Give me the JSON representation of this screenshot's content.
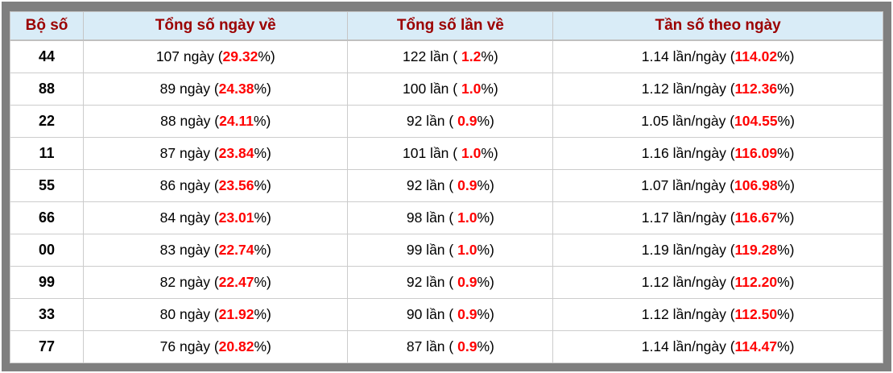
{
  "table": {
    "headers": {
      "pair": "Bộ số",
      "days": "Tổng số ngày về",
      "times": "Tổng số lần về",
      "freq": "Tần số theo ngày"
    },
    "labels": {
      "open": " (",
      "open_spaced": " ( ",
      "close": "%)"
    },
    "rows": [
      {
        "pair": "44",
        "days": "107 ngày",
        "days_pct": "29.32",
        "times": "122 lần",
        "times_pct": "1.2",
        "freq": "1.14 lần/ngày",
        "freq_pct": "114.02"
      },
      {
        "pair": "88",
        "days": "89 ngày",
        "days_pct": "24.38",
        "times": "100 lần",
        "times_pct": "1.0",
        "freq": "1.12 lần/ngày",
        "freq_pct": "112.36"
      },
      {
        "pair": "22",
        "days": "88 ngày",
        "days_pct": "24.11",
        "times": "92 lần",
        "times_pct": "0.9",
        "freq": "1.05 lần/ngày",
        "freq_pct": "104.55"
      },
      {
        "pair": "11",
        "days": "87 ngày",
        "days_pct": "23.84",
        "times": "101 lần",
        "times_pct": "1.0",
        "freq": "1.16 lần/ngày",
        "freq_pct": "116.09"
      },
      {
        "pair": "55",
        "days": "86 ngày",
        "days_pct": "23.56",
        "times": "92 lần",
        "times_pct": "0.9",
        "freq": "1.07 lần/ngày",
        "freq_pct": "106.98"
      },
      {
        "pair": "66",
        "days": "84 ngày",
        "days_pct": "23.01",
        "times": "98 lần",
        "times_pct": "1.0",
        "freq": "1.17 lần/ngày",
        "freq_pct": "116.67"
      },
      {
        "pair": "00",
        "days": "83 ngày",
        "days_pct": "22.74",
        "times": "99 lần",
        "times_pct": "1.0",
        "freq": "1.19 lần/ngày",
        "freq_pct": "119.28"
      },
      {
        "pair": "99",
        "days": "82 ngày",
        "days_pct": "22.47",
        "times": "92 lần",
        "times_pct": "0.9",
        "freq": "1.12 lần/ngày",
        "freq_pct": "112.20"
      },
      {
        "pair": "33",
        "days": "80 ngày",
        "days_pct": "21.92",
        "times": "90 lần",
        "times_pct": "0.9",
        "freq": "1.12 lần/ngày",
        "freq_pct": "112.50"
      },
      {
        "pair": "77",
        "days": "76 ngày",
        "days_pct": "20.82",
        "times": "87 lần",
        "times_pct": "0.9",
        "freq": "1.14 lần/ngày",
        "freq_pct": "114.47"
      }
    ]
  },
  "colors": {
    "frame": "#7f7f7f",
    "header_bg": "#d9ecf7",
    "header_text": "#9b0000",
    "highlight_red": "#ff0000",
    "cell_border": "#cccccc"
  }
}
